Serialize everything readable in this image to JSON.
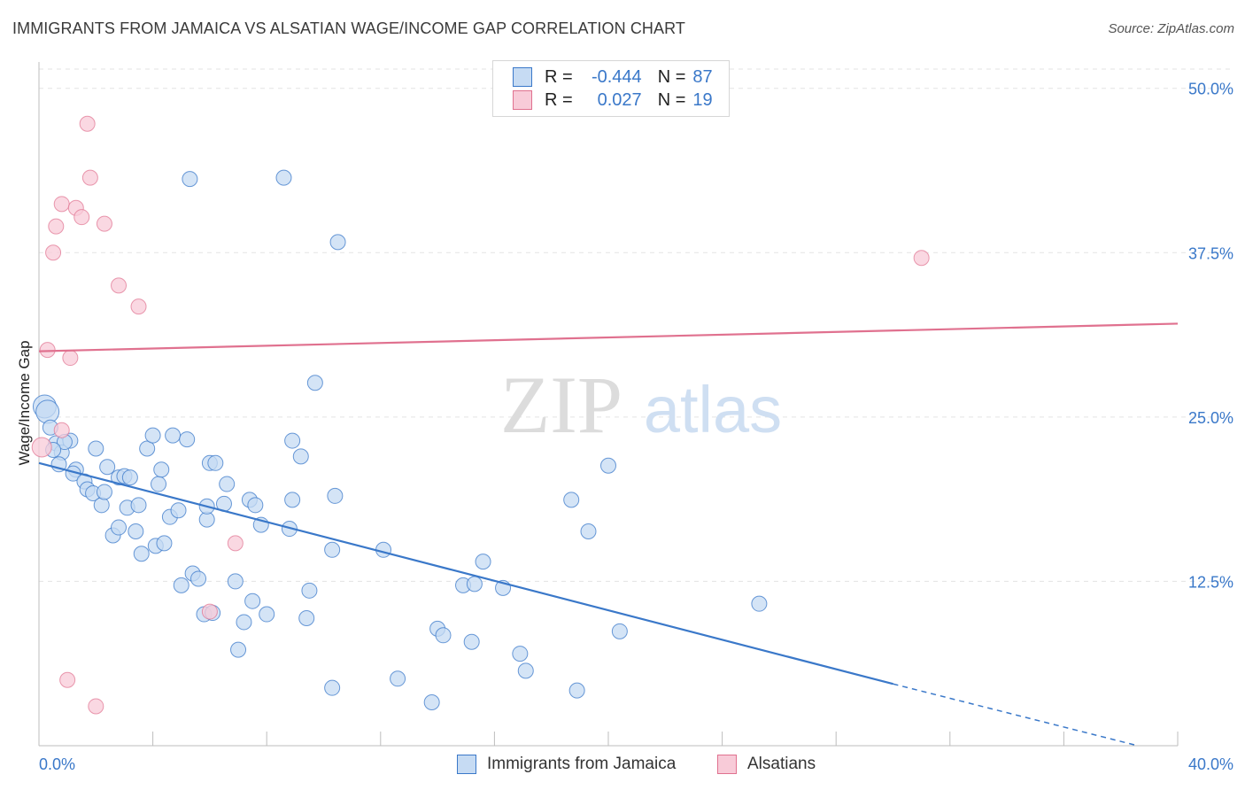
{
  "title": "IMMIGRANTS FROM JAMAICA VS ALSATIAN WAGE/INCOME GAP CORRELATION CHART",
  "source": "Source: ZipAtlas.com",
  "watermark": {
    "zip": "ZIP",
    "atlas": "atlas"
  },
  "legend": {
    "r_label": "R =",
    "n_label": "N =",
    "rows": [
      {
        "r": "-0.444",
        "n": "87"
      },
      {
        "r": "0.027",
        "n": "19"
      }
    ]
  },
  "colors": {
    "blue": "#3a78c9",
    "blue_fill": "#c6dbf3",
    "pink": "#e0718f",
    "pink_fill": "#f8cbd8",
    "grid": "#e3e3e3",
    "tick_text": "#3a78c9"
  },
  "chart_data": {
    "type": "scatter",
    "title": "IMMIGRANTS FROM JAMAICA VS ALSATIAN WAGE/INCOME GAP CORRELATION CHART",
    "xlabel": "",
    "ylabel": "Wage/Income Gap",
    "xlim": [
      0,
      40
    ],
    "ylim": [
      0,
      52
    ],
    "x_tick_labels": [
      "0.0%",
      "40.0%"
    ],
    "y_ticks": [
      12.5,
      25.0,
      37.5,
      50.0
    ],
    "y_tick_labels": [
      "12.5%",
      "25.0%",
      "37.5%",
      "50.0%"
    ],
    "grid": true,
    "legend_position": "top-center",
    "series": [
      {
        "name": "Immigrants from Jamaica",
        "color": "#3a78c9",
        "R": -0.444,
        "N": 87,
        "points": [
          [
            0.2,
            25.8
          ],
          [
            0.3,
            25.4
          ],
          [
            0.4,
            24.2
          ],
          [
            0.6,
            23.0
          ],
          [
            0.8,
            22.3
          ],
          [
            1.1,
            23.2
          ],
          [
            0.9,
            23.1
          ],
          [
            0.7,
            21.4
          ],
          [
            1.3,
            21.0
          ],
          [
            1.2,
            20.7
          ],
          [
            1.6,
            20.1
          ],
          [
            1.7,
            19.5
          ],
          [
            1.9,
            19.2
          ],
          [
            2.0,
            22.6
          ],
          [
            2.2,
            18.3
          ],
          [
            2.3,
            19.3
          ],
          [
            2.4,
            21.2
          ],
          [
            2.6,
            16.0
          ],
          [
            2.8,
            20.4
          ],
          [
            2.8,
            16.6
          ],
          [
            3.0,
            20.5
          ],
          [
            3.1,
            18.1
          ],
          [
            3.2,
            20.4
          ],
          [
            3.4,
            16.3
          ],
          [
            3.5,
            18.3
          ],
          [
            3.6,
            14.6
          ],
          [
            3.8,
            22.6
          ],
          [
            4.0,
            23.6
          ],
          [
            4.1,
            15.2
          ],
          [
            4.2,
            19.9
          ],
          [
            4.3,
            21.0
          ],
          [
            4.4,
            15.4
          ],
          [
            4.6,
            17.4
          ],
          [
            4.7,
            23.6
          ],
          [
            4.9,
            17.9
          ],
          [
            5.0,
            12.2
          ],
          [
            5.2,
            23.3
          ],
          [
            5.4,
            13.1
          ],
          [
            5.6,
            12.7
          ],
          [
            5.8,
            10.0
          ],
          [
            5.9,
            17.2
          ],
          [
            5.9,
            18.2
          ],
          [
            6.0,
            21.5
          ],
          [
            6.1,
            10.1
          ],
          [
            6.2,
            21.5
          ],
          [
            6.5,
            18.4
          ],
          [
            6.6,
            19.9
          ],
          [
            6.9,
            12.5
          ],
          [
            7.0,
            7.3
          ],
          [
            7.2,
            9.4
          ],
          [
            7.4,
            18.7
          ],
          [
            7.5,
            11.0
          ],
          [
            7.6,
            18.3
          ],
          [
            7.8,
            16.8
          ],
          [
            8.0,
            10.0
          ],
          [
            8.9,
            18.7
          ],
          [
            8.6,
            43.2
          ],
          [
            8.8,
            16.5
          ],
          [
            8.9,
            23.2
          ],
          [
            9.2,
            22.0
          ],
          [
            9.4,
            9.7
          ],
          [
            9.5,
            11.8
          ],
          [
            9.7,
            27.6
          ],
          [
            10.3,
            4.4
          ],
          [
            10.4,
            19.0
          ],
          [
            10.3,
            14.9
          ],
          [
            10.5,
            38.3
          ],
          [
            12.1,
            14.9
          ],
          [
            12.6,
            5.1
          ],
          [
            13.8,
            3.3
          ],
          [
            14.0,
            8.9
          ],
          [
            14.2,
            8.4
          ],
          [
            14.9,
            12.2
          ],
          [
            15.2,
            7.9
          ],
          [
            15.3,
            12.3
          ],
          [
            15.6,
            14.0
          ],
          [
            16.3,
            12.0
          ],
          [
            16.9,
            7.0
          ],
          [
            17.1,
            5.7
          ],
          [
            18.7,
            18.7
          ],
          [
            18.9,
            4.2
          ],
          [
            19.3,
            16.3
          ],
          [
            20.0,
            21.3
          ],
          [
            20.4,
            8.7
          ],
          [
            25.3,
            10.8
          ],
          [
            5.3,
            43.1
          ],
          [
            0.5,
            22.5
          ]
        ],
        "trend": {
          "x_solid": [
            0,
            30.0
          ],
          "y_solid": [
            21.5,
            4.7
          ],
          "x_dashed": [
            30.0,
            38.6
          ],
          "y_dashed": [
            4.7,
            0.0
          ]
        }
      },
      {
        "name": "Alsatians",
        "color": "#e0718f",
        "R": 0.027,
        "N": 19,
        "points": [
          [
            0.1,
            22.7
          ],
          [
            0.3,
            30.1
          ],
          [
            0.5,
            37.5
          ],
          [
            0.6,
            39.5
          ],
          [
            0.8,
            41.2
          ],
          [
            0.8,
            24.0
          ],
          [
            1.0,
            5.0
          ],
          [
            1.1,
            29.5
          ],
          [
            1.3,
            40.9
          ],
          [
            1.5,
            40.2
          ],
          [
            1.7,
            47.3
          ],
          [
            1.8,
            43.2
          ],
          [
            2.0,
            3.0
          ],
          [
            2.3,
            39.7
          ],
          [
            2.8,
            35.0
          ],
          [
            3.5,
            33.4
          ],
          [
            6.0,
            10.2
          ],
          [
            6.9,
            15.4
          ],
          [
            31.0,
            37.1
          ]
        ],
        "trend": {
          "x": [
            0,
            40
          ],
          "y": [
            30.0,
            32.1
          ]
        }
      }
    ]
  }
}
